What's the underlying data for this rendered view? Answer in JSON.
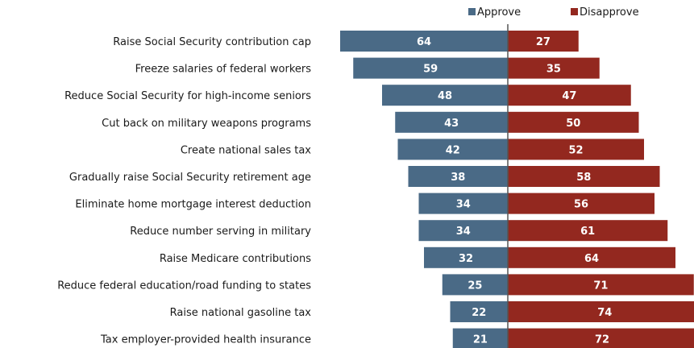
{
  "chart_data": {
    "type": "bar",
    "orientation": "diverging-horizontal",
    "title": "",
    "xlabel": "",
    "ylabel": "",
    "grid": false,
    "legend_position": "top",
    "categories": [
      "Raise Social Security contribution cap",
      "Freeze salaries of federal workers",
      "Reduce Social Security for high-income seniors",
      "Cut back on military weapons programs",
      "Create national sales tax",
      "Gradually raise Social Security retirement age",
      "Eliminate home mortgage interest deduction",
      "Reduce number serving in military",
      "Raise Medicare contributions",
      "Reduce federal education/road funding to states",
      "Raise national gasoline tax",
      "Tax employer-provided health insurance"
    ],
    "series": [
      {
        "name": "Approve",
        "color": "#4a6a86",
        "direction": "left",
        "values": [
          64,
          59,
          48,
          43,
          42,
          38,
          34,
          34,
          32,
          25,
          22,
          21
        ]
      },
      {
        "name": "Disapprove",
        "color": "#93281f",
        "direction": "right",
        "values": [
          27,
          35,
          47,
          50,
          52,
          58,
          56,
          61,
          64,
          71,
          74,
          72
        ]
      }
    ],
    "xlim": [
      -80,
      80
    ],
    "divider_color": "#555555"
  }
}
